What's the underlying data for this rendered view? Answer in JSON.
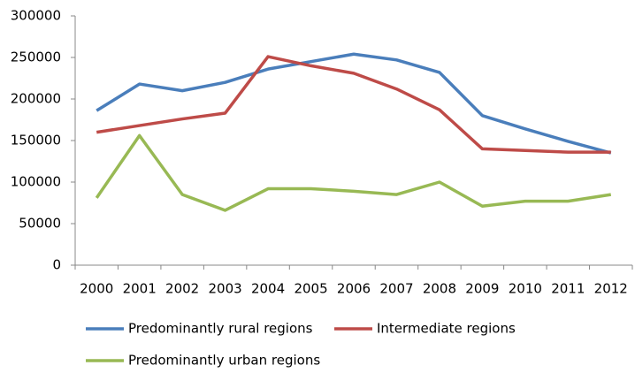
{
  "chart_data": {
    "type": "line",
    "categories": [
      "2000",
      "2001",
      "2002",
      "2003",
      "2004",
      "2005",
      "2006",
      "2007",
      "2008",
      "2009",
      "2010",
      "2011",
      "2012"
    ],
    "series": [
      {
        "name": "Predominantly rural regions",
        "color": "#4a7ebb",
        "values": [
          186000,
          218000,
          210000,
          220000,
          236000,
          245000,
          254000,
          247000,
          232000,
          180000,
          164000,
          149000,
          135000
        ]
      },
      {
        "name": "Intermediate regions",
        "color": "#be4b48",
        "values": [
          160000,
          168000,
          176000,
          183000,
          251000,
          240000,
          231000,
          212000,
          187000,
          140000,
          138000,
          136000,
          136000
        ]
      },
      {
        "name": "Predominantly urban regions",
        "color": "#98b954",
        "values": [
          81000,
          156000,
          85000,
          66000,
          92000,
          92000,
          89000,
          85000,
          100000,
          71000,
          77000,
          77000,
          85000
        ]
      }
    ],
    "ylim": [
      0,
      300000
    ],
    "yticks": [
      0,
      50000,
      100000,
      150000,
      200000,
      250000,
      300000
    ],
    "grid": false,
    "legend": "bottom"
  }
}
